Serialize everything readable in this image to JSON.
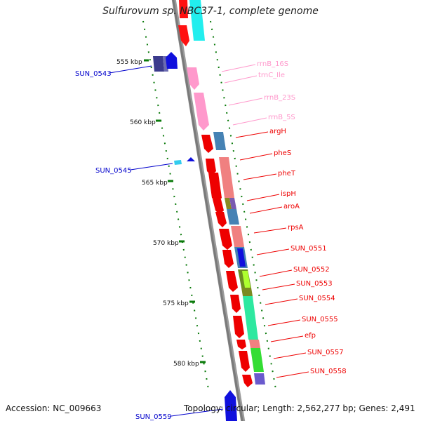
{
  "title": "Sulfurovum sp. NBC37-1, complete genome",
  "ruler": {
    "labels": [
      "555 kbp",
      "560 kbp",
      "565 kbp",
      "570 kbp",
      "575 kbp",
      "580 kbp"
    ]
  },
  "genes_right": [
    "rrnB_16S",
    "trnC_Ile",
    "rrnB_23S",
    "rrnB_5S",
    "argH",
    "pheS",
    "pheT",
    "ispH",
    "aroA",
    "rpsA",
    "SUN_0551",
    "SUN_0552",
    "SUN_0553",
    "SUN_0554",
    "SUN_0555",
    "efp",
    "SUN_0557",
    "SUN_0558"
  ],
  "genes_left": [
    "SUN_0543",
    "SUN_0545",
    "SUN_0559"
  ],
  "footer": {
    "accession": "Accession: NC_009663",
    "summary": "Topology: circular; Length: 2,562,277 bp; Genes: 2,491"
  },
  "colors": {
    "rRNA_label": "#ff99cc",
    "forward_gene_label": "#ee0000",
    "reverse_gene_label": "#0000cc",
    "ruler": "#0a7a0a",
    "backbone": "#7a7a7a"
  }
}
